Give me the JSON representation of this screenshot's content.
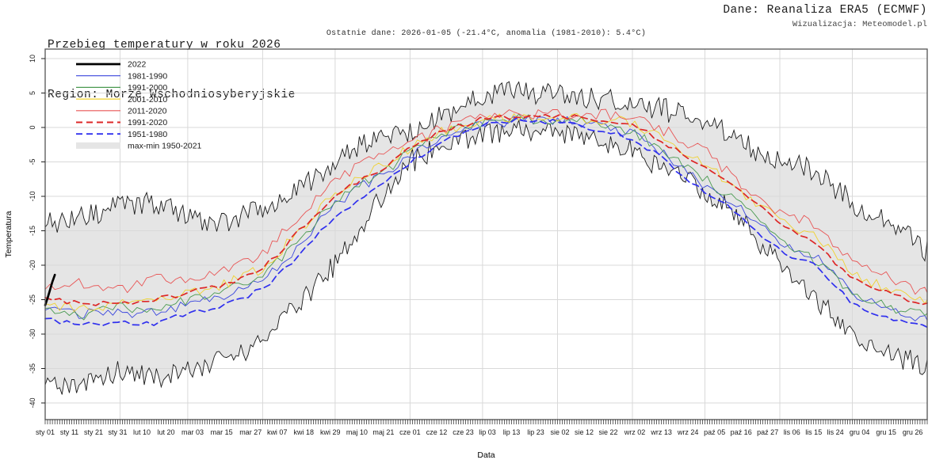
{
  "chart_data": {
    "type": "line",
    "title": "Przebieg temperatury w roku 2026",
    "region": "Region: Morze Wschodniosyberyjskie",
    "source": "Dane: Reanaliza ERA5 (ECMWF)",
    "credit": "Wizualizacja: Meteomodel.pl",
    "last_data_note": "Ostatnie dane: 2026-01-05 (-21.4°C, anomalia (1981-2010): 5.4°C)",
    "grid": true,
    "legend_position": "top-left",
    "x_axis": {
      "label": "Data",
      "day_range": [
        1,
        366
      ],
      "tick_labels": [
        "sty 01",
        "sty 11",
        "sty 21",
        "sty 31",
        "lut 10",
        "lut 20",
        "mar 03",
        "mar 15",
        "mar 27",
        "kwi 07",
        "kwi 18",
        "kwi 29",
        "maj 10",
        "maj 21",
        "cze 01",
        "cze 12",
        "cze 23",
        "lip 03",
        "lip 13",
        "lip 23",
        "sie 02",
        "sie 12",
        "sie 22",
        "wrz 02",
        "wrz 13",
        "wrz 24",
        "paź 05",
        "paź 16",
        "paź 27",
        "lis 06",
        "lis 15",
        "lis 24",
        "gru 04",
        "gru 15",
        "gru 26"
      ],
      "tick_days": [
        1,
        11,
        21,
        31,
        41,
        51,
        62,
        74,
        86,
        97,
        108,
        119,
        130,
        141,
        152,
        163,
        174,
        184,
        194,
        204,
        214,
        224,
        234,
        245,
        256,
        267,
        278,
        289,
        300,
        310,
        319,
        328,
        338,
        349,
        360
      ],
      "month_gridline_days": [
        1,
        32,
        60,
        91,
        121,
        152,
        182,
        213,
        244,
        274,
        305,
        335
      ]
    },
    "y_axis": {
      "label": "Temperatura",
      "ticks": [
        10,
        5,
        0,
        -5,
        -10,
        -15,
        -20,
        -25,
        -30,
        -35,
        -40
      ],
      "range": [
        -42.4,
        11.4
      ]
    },
    "band": {
      "name": "max-min 1950-2021",
      "fill_color": "#e5e5e5",
      "edge_color": "#1a1a1a",
      "days": [
        1,
        15,
        32,
        46,
        60,
        74,
        91,
        105,
        121,
        135,
        145,
        152,
        166,
        182,
        196,
        213,
        227,
        244,
        258,
        274,
        288,
        305,
        319,
        335,
        349,
        365
      ],
      "max": [
        -14,
        -13,
        -11.5,
        -11,
        -13,
        -14,
        -11.5,
        -9,
        -5,
        -2,
        -1,
        -0.5,
        2,
        4.5,
        5.5,
        4.5,
        4.5,
        3.5,
        2.5,
        1,
        -2,
        -5,
        -6,
        -11,
        -13,
        -18
      ],
      "min": [
        -37,
        -37.5,
        -35.5,
        -36.5,
        -35.5,
        -34,
        -31,
        -26,
        -20,
        -12.5,
        -7.5,
        -5,
        -2.5,
        -1,
        -0.3,
        -0.5,
        -1.5,
        -3.5,
        -6,
        -9.5,
        -13,
        -20,
        -24.5,
        -30.5,
        -33,
        -34.5
      ],
      "noise_amplitude": 1.7
    },
    "anchor_days": [
      1,
      15,
      32,
      46,
      60,
      74,
      91,
      105,
      121,
      135,
      145,
      152,
      166,
      182,
      196,
      213,
      227,
      244,
      258,
      274,
      288,
      305,
      319,
      335,
      349,
      365
    ],
    "series": [
      {
        "id": "2022",
        "name": "2022",
        "color": "#000000",
        "dashed": false,
        "width": 2.7,
        "exact": true,
        "days": [
          1,
          2,
          3,
          4,
          5
        ],
        "values": [
          -25.8,
          -24.8,
          -23.6,
          -22.4,
          -21.4
        ],
        "noise_amplitude": 0,
        "seed": 1
      },
      {
        "id": "1981-1990",
        "name": "1981-1990",
        "color": "#3a46dd",
        "dashed": false,
        "width": 0.9,
        "values": [
          -26.5,
          -27,
          -27,
          -27,
          -25.5,
          -24.5,
          -22,
          -17.5,
          -11,
          -8,
          -6,
          -4,
          -1.5,
          0.5,
          1,
          1,
          0.5,
          -1,
          -4,
          -8.5,
          -11.5,
          -17,
          -18.5,
          -24,
          -26.5,
          -28
        ],
        "noise_amplitude": 0.75,
        "seed": 2
      },
      {
        "id": "1991-2000",
        "name": "1991-2000",
        "color": "#4a9a50",
        "dashed": false,
        "width": 0.9,
        "values": [
          -26,
          -27.5,
          -26,
          -26.5,
          -25,
          -24,
          -21.5,
          -17,
          -10.5,
          -7.5,
          -5.5,
          -3.5,
          -1,
          0.8,
          1.2,
          1.2,
          0.8,
          -0.5,
          -3.5,
          -7.5,
          -11,
          -16.5,
          -19,
          -24,
          -26,
          -27
        ],
        "noise_amplitude": 0.75,
        "seed": 3
      },
      {
        "id": "2001-2010",
        "name": "2001-2010",
        "color": "#f0d22e",
        "dashed": false,
        "width": 0.9,
        "values": [
          -25.5,
          -26.5,
          -25.5,
          -25.5,
          -24,
          -23,
          -20.5,
          -15.5,
          -9.5,
          -6.5,
          -4.5,
          -3,
          -0.5,
          1,
          1.5,
          1.5,
          1.2,
          0.8,
          -2,
          -5.5,
          -9,
          -13.5,
          -15.5,
          -21,
          -23.5,
          -25
        ],
        "noise_amplitude": 0.75,
        "seed": 4
      },
      {
        "id": "2011-2020",
        "name": "2011-2020",
        "color": "#e85555",
        "dashed": false,
        "width": 0.9,
        "values": [
          -23,
          -22.5,
          -23.5,
          -22,
          -22.5,
          -21,
          -18.5,
          -13,
          -7.5,
          -5,
          -3.5,
          -2.5,
          0,
          1.5,
          2,
          2,
          2,
          1.5,
          -0.5,
          -3.5,
          -8,
          -12.5,
          -14,
          -19.5,
          -21.5,
          -24
        ],
        "noise_amplitude": 0.85,
        "seed": 5
      },
      {
        "id": "1991-2020",
        "name": "1991-2020",
        "color": "#dd2727",
        "dashed": true,
        "width": 1.7,
        "values": [
          -25,
          -25.5,
          -25.5,
          -25,
          -24,
          -23,
          -20.5,
          -15.5,
          -10,
          -7,
          -5,
          -3,
          -0.5,
          1.2,
          1.6,
          1.6,
          1.4,
          0.5,
          -2.5,
          -6,
          -9,
          -14,
          -16.5,
          -22,
          -24,
          -25.5
        ],
        "noise_amplitude": 0.4,
        "seed": 6
      },
      {
        "id": "1951-1980",
        "name": "1951-1980",
        "color": "#3030ee",
        "dashed": true,
        "width": 1.7,
        "values": [
          -28,
          -28.5,
          -28.5,
          -28.5,
          -27,
          -26,
          -23.5,
          -19,
          -13,
          -9.5,
          -7,
          -5,
          -2,
          0.5,
          1,
          0.8,
          0,
          -1.5,
          -5,
          -9.5,
          -12.5,
          -18,
          -20,
          -25.5,
          -27.5,
          -29
        ],
        "noise_amplitude": 0.4,
        "seed": 7
      }
    ],
    "colors": {
      "grid": "#d9d9d9",
      "spine": "#555555",
      "tick": "#222222"
    }
  }
}
